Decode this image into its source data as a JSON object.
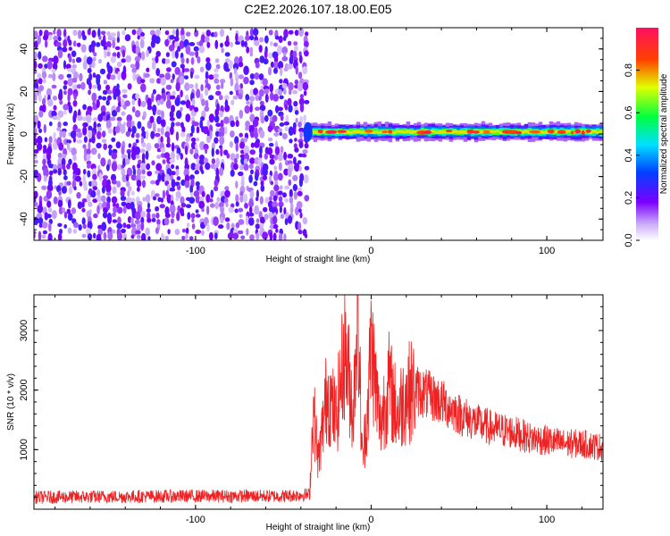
{
  "title": "C2E2.2026.107.18.00.E05",
  "colors": {
    "snr_line": "#ee2222",
    "sparse_band": "#7a20f0",
    "frame": "#000000"
  },
  "colorbar": {
    "label": "Normalized spectral amplitude",
    "ticks": [
      "0.0",
      "0.2",
      "0.4",
      "0.6",
      "0.8"
    ],
    "tick_values": [
      0.0,
      0.2,
      0.4,
      0.6,
      0.8
    ],
    "range": [
      0,
      1
    ]
  },
  "chart_data": [
    {
      "type": "heatmap",
      "title": "",
      "xlabel": "Height of straight line (km)",
      "ylabel": "Frequency (Hz)",
      "xlim": [
        -192,
        132
      ],
      "ylim": [
        -50,
        50
      ],
      "x_ticks": [
        -100,
        0,
        100
      ],
      "x_tick_labels": [
        "-100",
        "0",
        "100"
      ],
      "y_ticks": [
        -40,
        -20,
        0,
        20,
        40
      ],
      "y_tick_labels": [
        "-40",
        "-20",
        "0",
        "20",
        "40"
      ],
      "noise_region": {
        "x_range": [
          -192,
          -37
        ],
        "y_range": [
          -50,
          48
        ],
        "amplitude": [
          0.05,
          0.25
        ]
      },
      "signal_band": {
        "x_range": [
          -37,
          132
        ],
        "center_frequency": 1,
        "half_width": 3,
        "peak_amplitude": 0.98
      }
    },
    {
      "type": "line",
      "title": "",
      "xlabel": "Height of straight line (km)",
      "ylabel": "SNR (10 * v/v)",
      "xlim": [
        -192,
        132
      ],
      "ylim": [
        0,
        3600
      ],
      "x_ticks": [
        -100,
        0,
        100
      ],
      "x_tick_labels": [
        "-100",
        "0",
        "100"
      ],
      "y_ticks": [
        1000,
        2000,
        3000
      ],
      "y_tick_labels": [
        "1000",
        "2000",
        "3000"
      ],
      "series": [
        {
          "x": [
            -192,
            -150,
            -100,
            -50,
            -35,
            -33,
            -30,
            -25,
            -20,
            -15,
            -10,
            -8,
            -5,
            -2,
            0,
            5,
            10,
            15,
            20,
            25,
            30,
            40,
            50,
            60,
            70,
            80,
            90,
            100,
            110,
            120,
            130
          ],
          "y": [
            200,
            210,
            220,
            220,
            250,
            1700,
            800,
            2000,
            1500,
            2700,
            1600,
            3600,
            800,
            1700,
            2800,
            1400,
            2100,
            1600,
            1950,
            2000,
            1950,
            1800,
            1600,
            1450,
            1350,
            1300,
            1200,
            1150,
            1100,
            1100,
            1050
          ]
        }
      ]
    }
  ]
}
